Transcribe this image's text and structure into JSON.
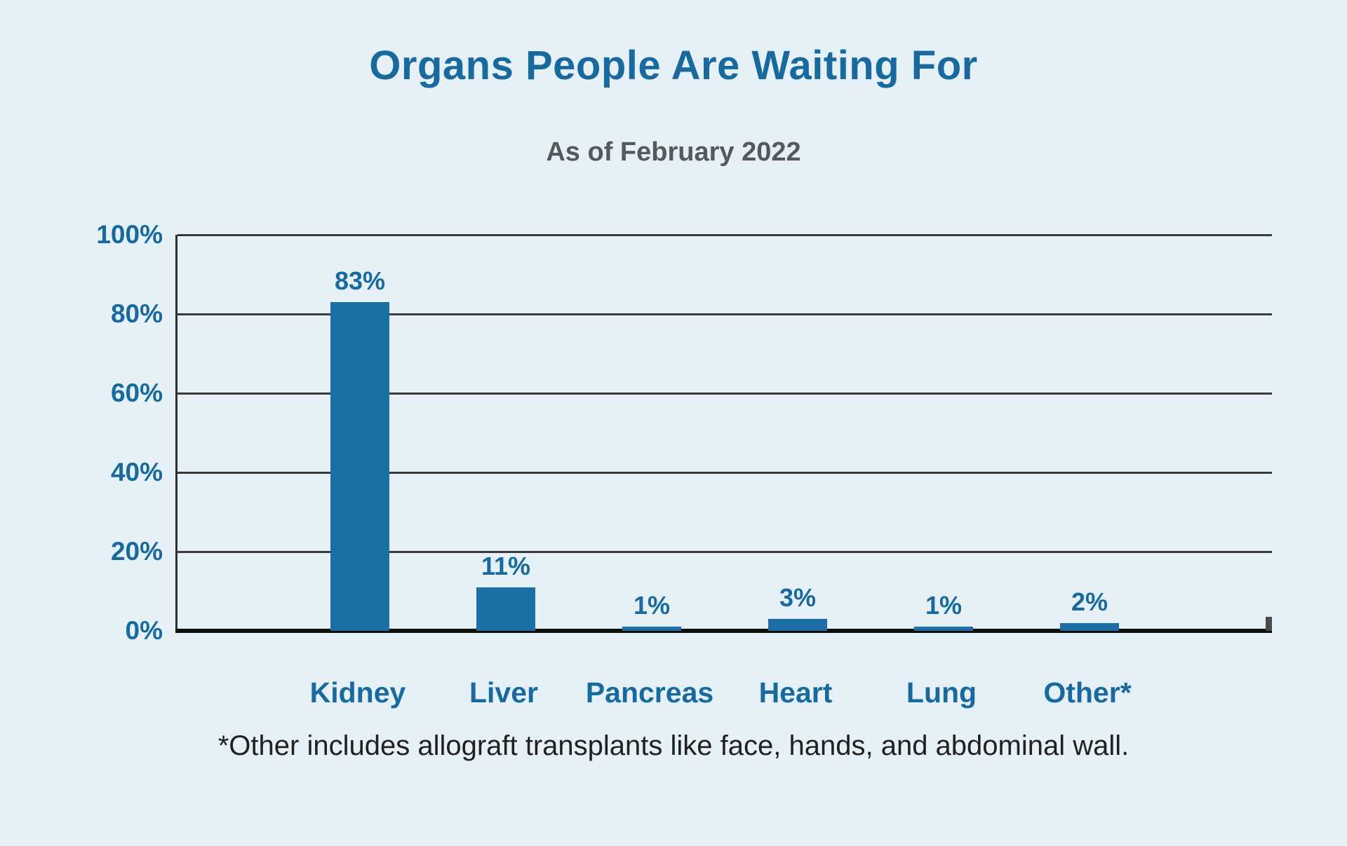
{
  "page": {
    "background_color": "#e6f1f7"
  },
  "header": {
    "title": "Organs People Are Waiting For",
    "subtitle": "As of February 2022"
  },
  "footnote": "*Other includes allograft transplants like face, hands, and abdominal wall.",
  "chart_data": {
    "type": "bar",
    "title": "Organs People Are Waiting For",
    "subtitle": "As of February 2022",
    "categories": [
      "Kidney",
      "Liver",
      "Pancreas",
      "Heart",
      "Lung",
      "Other*"
    ],
    "values": [
      83,
      11,
      1,
      3,
      1,
      2
    ],
    "value_labels": [
      "83%",
      "11%",
      "1%",
      "3%",
      "1%",
      "2%"
    ],
    "xlabel": "",
    "ylabel": "",
    "ylim": [
      0,
      100
    ],
    "ytick_labels": [
      "100%",
      "80%",
      "60%",
      "40%",
      "20%",
      "0%"
    ],
    "ytick_values": [
      100,
      80,
      60,
      40,
      20,
      0
    ],
    "grid": "horizontal gridlines on",
    "legend": "none",
    "bar_color": "#1b6fa4",
    "text_accent_color": "#17699e",
    "subtitle_color": "#56595c",
    "gridline_color": "#3a3a3a",
    "axis_color": "#0d0d0d",
    "footnote_color": "#212121"
  }
}
